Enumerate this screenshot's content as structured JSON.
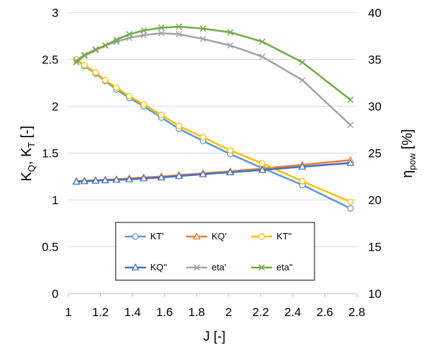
{
  "chart_data": {
    "type": "line",
    "xlabel": "J [-]",
    "ylabel": {
      "main": "K",
      "sub1": "Q",
      "mid": ", K",
      "sub2": "T",
      "tail": " [-]"
    },
    "y2label": {
      "main": "η",
      "sub": "pow",
      "tail": " [%]"
    },
    "xlim": [
      1,
      2.8
    ],
    "ylim": [
      0,
      3
    ],
    "y2lim": [
      10,
      40
    ],
    "x_ticks": [
      "1",
      "1.2",
      "1.4",
      "1.6",
      "1.8",
      "2",
      "2.2",
      "2.4",
      "2.6",
      "2.8"
    ],
    "y_ticks": [
      "0",
      "0.5",
      "1",
      "1.5",
      "2",
      "2.5",
      "3"
    ],
    "y2_ticks": [
      "10",
      "15",
      "20",
      "25",
      "30",
      "35",
      "40"
    ],
    "grid": "horizontal",
    "legend_placement": "bottom-center",
    "series": [
      {
        "name": "KT'",
        "axis": "left",
        "color": "#5B9BD5",
        "marker": "circle",
        "x": [
          1.05,
          1.1,
          1.17,
          1.23,
          1.3,
          1.38,
          1.47,
          1.58,
          1.69,
          1.84,
          2.01,
          2.21,
          2.46,
          2.76
        ],
        "y": [
          2.5,
          2.43,
          2.35,
          2.27,
          2.18,
          2.09,
          2.0,
          1.88,
          1.76,
          1.63,
          1.49,
          1.34,
          1.16,
          0.91
        ]
      },
      {
        "name": "KQ'",
        "axis": "left",
        "color": "#ED7D31",
        "marker": "triangle",
        "x": [
          1.05,
          1.1,
          1.17,
          1.23,
          1.3,
          1.38,
          1.47,
          1.58,
          1.69,
          1.84,
          2.01,
          2.21,
          2.46,
          2.76
        ],
        "y": [
          1.2,
          1.205,
          1.21,
          1.215,
          1.22,
          1.23,
          1.24,
          1.25,
          1.265,
          1.285,
          1.305,
          1.335,
          1.375,
          1.425
        ]
      },
      {
        "name": "KT''",
        "axis": "left",
        "color": "#FFC000",
        "marker": "circle",
        "x": [
          1.05,
          1.1,
          1.17,
          1.23,
          1.3,
          1.38,
          1.47,
          1.58,
          1.69,
          1.84,
          2.01,
          2.21,
          2.46,
          2.76
        ],
        "y": [
          2.5,
          2.44,
          2.36,
          2.28,
          2.2,
          2.11,
          2.02,
          1.91,
          1.79,
          1.67,
          1.53,
          1.39,
          1.2,
          0.98
        ]
      },
      {
        "name": "KQ''",
        "axis": "left",
        "color": "#4472C4",
        "marker": "triangle",
        "x": [
          1.05,
          1.1,
          1.17,
          1.23,
          1.3,
          1.38,
          1.47,
          1.58,
          1.69,
          1.84,
          2.01,
          2.21,
          2.46,
          2.76
        ],
        "y": [
          1.195,
          1.2,
          1.205,
          1.21,
          1.215,
          1.22,
          1.23,
          1.24,
          1.255,
          1.275,
          1.295,
          1.32,
          1.355,
          1.395
        ]
      },
      {
        "name": "eta'",
        "axis": "right",
        "color": "#A5A5A5",
        "marker": "cross",
        "x": [
          1.05,
          1.1,
          1.17,
          1.23,
          1.3,
          1.38,
          1.47,
          1.58,
          1.69,
          1.84,
          2.01,
          2.21,
          2.46,
          2.76
        ],
        "y": [
          34.9,
          35.5,
          36.1,
          36.5,
          36.9,
          37.3,
          37.6,
          37.8,
          37.7,
          37.2,
          36.5,
          35.3,
          32.8,
          28.0
        ]
      },
      {
        "name": "eta''",
        "axis": "right",
        "color": "#70AD47",
        "marker": "cross",
        "x": [
          1.05,
          1.1,
          1.17,
          1.23,
          1.3,
          1.38,
          1.47,
          1.58,
          1.69,
          1.84,
          2.01,
          2.21,
          2.46,
          2.76
        ],
        "y": [
          34.7,
          35.4,
          36.0,
          36.5,
          37.1,
          37.7,
          38.1,
          38.4,
          38.5,
          38.3,
          37.9,
          36.9,
          34.7,
          30.7
        ]
      }
    ]
  }
}
